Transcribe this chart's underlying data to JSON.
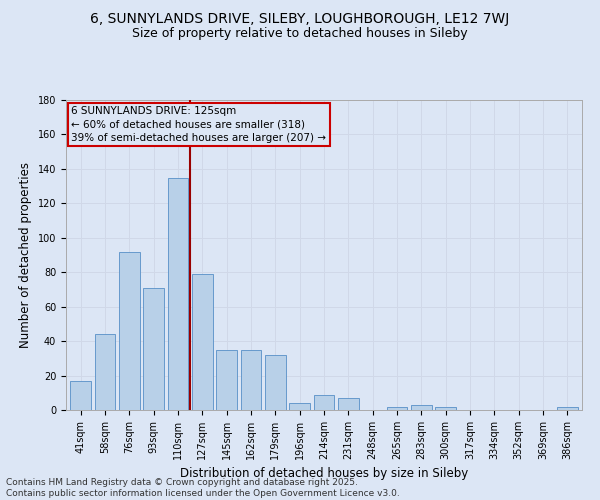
{
  "title1": "6, SUNNYLANDS DRIVE, SILEBY, LOUGHBOROUGH, LE12 7WJ",
  "title2": "Size of property relative to detached houses in Sileby",
  "xlabel": "Distribution of detached houses by size in Sileby",
  "ylabel": "Number of detached properties",
  "categories": [
    "41sqm",
    "58sqm",
    "76sqm",
    "93sqm",
    "110sqm",
    "127sqm",
    "145sqm",
    "162sqm",
    "179sqm",
    "196sqm",
    "214sqm",
    "231sqm",
    "248sqm",
    "265sqm",
    "283sqm",
    "300sqm",
    "317sqm",
    "334sqm",
    "352sqm",
    "369sqm",
    "386sqm"
  ],
  "values": [
    17,
    44,
    92,
    71,
    135,
    79,
    35,
    35,
    32,
    4,
    9,
    7,
    0,
    2,
    3,
    2,
    0,
    0,
    0,
    0,
    2
  ],
  "bar_color": "#b8d0e8",
  "bar_edge_color": "#6699cc",
  "grid_color": "#d0d8e8",
  "background_color": "#dce6f5",
  "vline_x": 4.5,
  "vline_color": "#990000",
  "annotation_text": "6 SUNNYLANDS DRIVE: 125sqm\n← 60% of detached houses are smaller (318)\n39% of semi-detached houses are larger (207) →",
  "annotation_box_color": "#cc0000",
  "ylim": [
    0,
    180
  ],
  "yticks": [
    0,
    20,
    40,
    60,
    80,
    100,
    120,
    140,
    160,
    180
  ],
  "footer": "Contains HM Land Registry data © Crown copyright and database right 2025.\nContains public sector information licensed under the Open Government Licence v3.0.",
  "title1_fontsize": 10,
  "title2_fontsize": 9,
  "xlabel_fontsize": 8.5,
  "ylabel_fontsize": 8.5,
  "tick_fontsize": 7,
  "footer_fontsize": 6.5,
  "ann_fontsize": 7.5
}
